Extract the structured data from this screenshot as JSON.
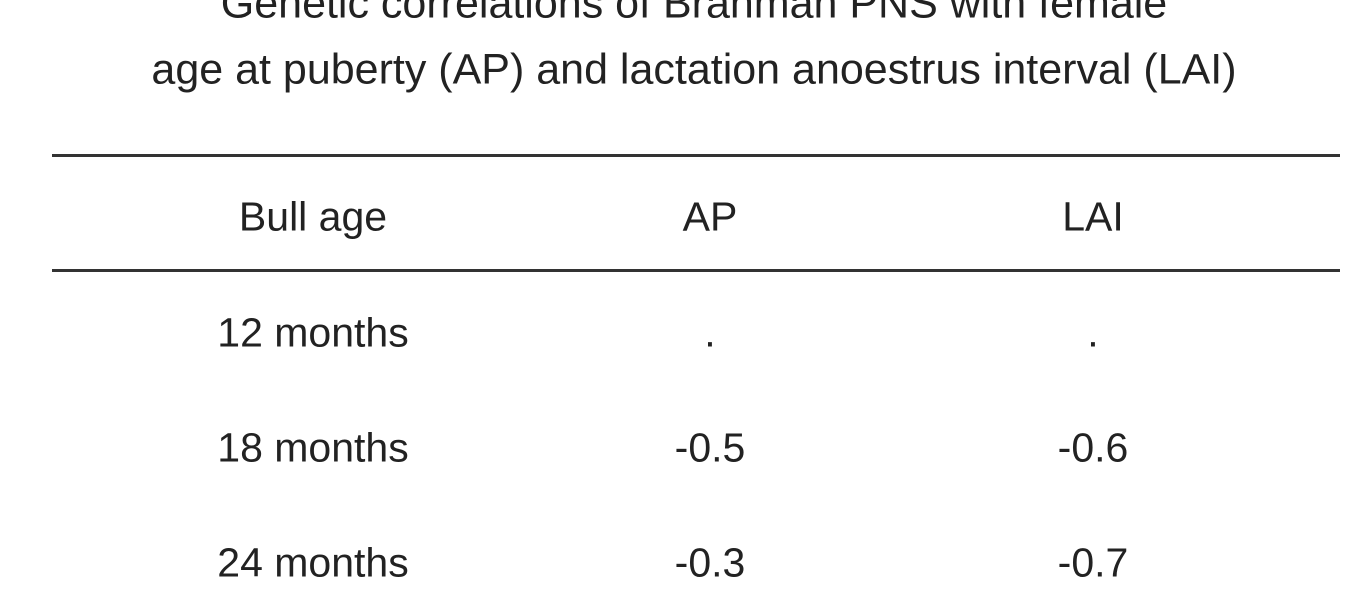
{
  "title": [
    "Genetic correlations of Brahman PNS with female",
    "age at puberty (AP) and lactation anoestrus interval (LAI)"
  ],
  "table": {
    "header": [
      "Bull age",
      "AP",
      "LAI"
    ],
    "rows": [
      [
        "12 months",
        ".",
        "."
      ],
      [
        "18 months",
        "-0.5",
        "-0.6"
      ],
      [
        "24 months",
        "-0.3",
        "-0.7"
      ]
    ]
  }
}
